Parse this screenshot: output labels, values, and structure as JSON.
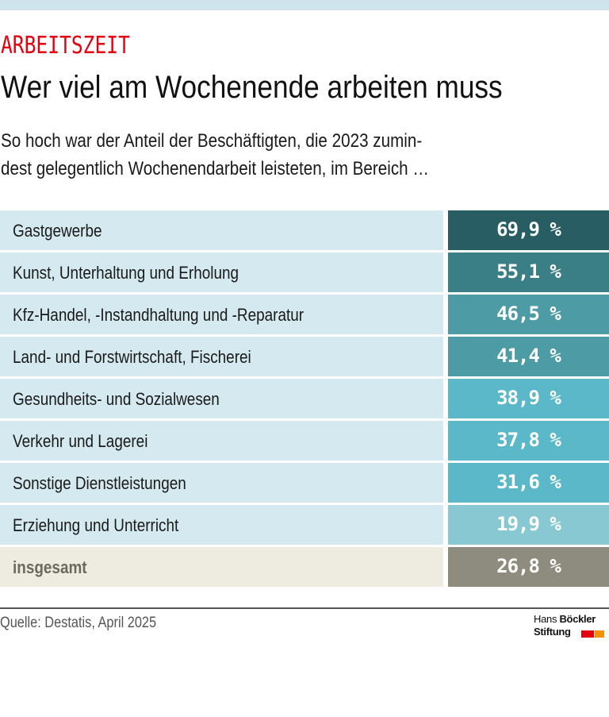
{
  "header": {
    "kicker": "ARBEITSZEIT",
    "title": "Wer viel am Wochenende arbeiten muss",
    "subtitle": "So hoch war der Anteil der Beschäftigten, die 2023 zumin-dest gelegentlich Wochenendarbeit leisteten, im Bereich …"
  },
  "footer": {
    "source": "Quelle: Destatis, April 2025",
    "logo_line1_regular": "Hans",
    "logo_line1_bold": "Böckler",
    "logo_line2": "Stiftung"
  },
  "colors": {
    "kicker": "#e3000f",
    "row_label_bg": "#d5eaf0",
    "total_label_bg": "#eeece0",
    "total_value_bg": "#8e8c7f",
    "logo_red": "#e3000f",
    "logo_orange": "#f39200"
  },
  "chart_data": {
    "type": "table",
    "title": "Wer viel am Wochenende arbeiten muss",
    "subtitle": "So hoch war der Anteil der Beschäftigten, die 2023 zumindest gelegentlich Wochenendarbeit leisteten, im Bereich …",
    "unit": "%",
    "categories": [
      "Gastgewerbe",
      "Kunst, Unterhaltung und Erholung",
      "Kfz-Handel, -Instandhaltung und -Reparatur",
      "Land- und Forstwirtschaft, Fischerei",
      "Gesundheits- und Sozialwesen",
      "Verkehr und Lagerei",
      "Sonstige Dienstleistungen",
      "Erziehung und Unterricht",
      "insgesamt"
    ],
    "values": [
      69.9,
      55.1,
      46.5,
      41.4,
      38.9,
      37.8,
      31.6,
      19.9,
      26.8
    ],
    "value_labels": [
      "69,9 %",
      "55,1 %",
      "46,5 %",
      "41,4 %",
      "38,9 %",
      "37,8 %",
      "31,6 %",
      "19,9 %",
      "26,8 %"
    ],
    "cell_colors": [
      "#285e63",
      "#3b7f86",
      "#4d9ba4",
      "#4d9ba4",
      "#5bb8c8",
      "#5bb8c8",
      "#5bb8c8",
      "#88c8d2",
      "#8e8c7f"
    ],
    "total_index": 8,
    "source": "Quelle: Destatis, April 2025"
  }
}
